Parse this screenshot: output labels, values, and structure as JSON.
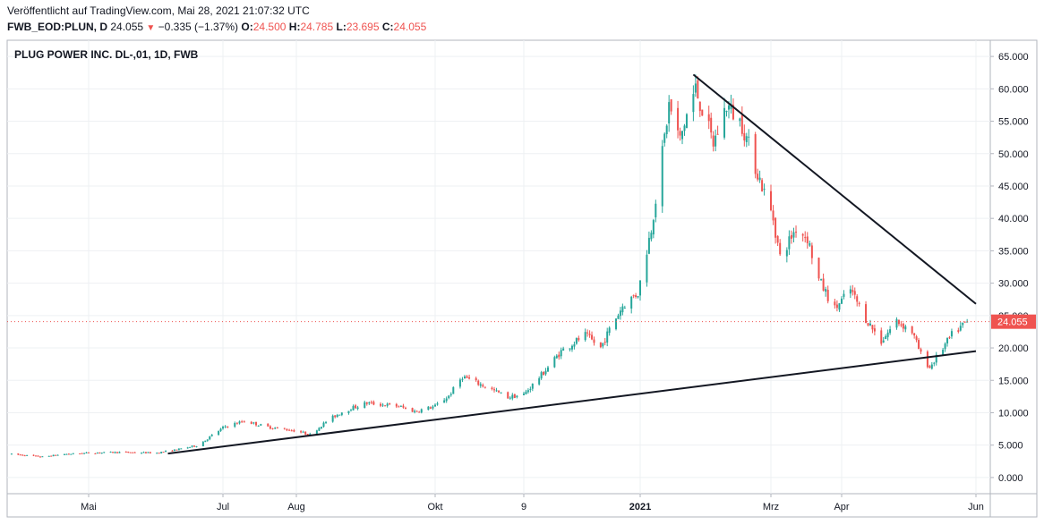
{
  "header": {
    "published": "Veröffentlicht auf TradingView.com, Mai 28, 2021 21:07:32 UTC",
    "symbol": "FWB_EOD:PLUN, D",
    "price": "24.055",
    "change": "−0.335 (−1.37%)",
    "open_label": "O:",
    "open": "24.500",
    "high_label": "H:",
    "high": "24.785",
    "low_label": "L:",
    "low": "23.695",
    "close_label": "C:",
    "close": "24.055"
  },
  "chart_data": {
    "type": "candlestick",
    "title": "PLUG POWER INC. DL-,01, 1D, FWB",
    "ylim": [
      -2.5,
      67.5
    ],
    "y_ticks": [
      "65.000",
      "60.000",
      "55.000",
      "50.000",
      "45.000",
      "40.000",
      "35.000",
      "30.000",
      "25.000",
      "20.000",
      "15.000",
      "10.000",
      "5.000",
      "0.000"
    ],
    "x_ticks": [
      {
        "label": "Mai",
        "date": "2020-05-01"
      },
      {
        "label": "Jul",
        "date": "2020-07-01"
      },
      {
        "label": "Aug",
        "date": "2020-08-01"
      },
      {
        "label": "Okt",
        "date": "2020-10-01"
      },
      {
        "label": "9",
        "date": "2020-11-09"
      },
      {
        "label": "2021",
        "date": "2021-01-01",
        "bold": true
      },
      {
        "label": "Mrz",
        "date": "2021-03-01"
      },
      {
        "label": "Apr",
        "date": "2021-04-01"
      },
      {
        "label": "Jun",
        "date": "2021-06-01"
      }
    ],
    "last_value": "24.055",
    "colors": {
      "up": "#26a69a",
      "down": "#ef5350",
      "grid": "#eef0f3",
      "trendline": "#131722"
    },
    "trendlines": [
      {
        "name": "support",
        "points": [
          {
            "x": "2020-06-06",
            "y": 3.7
          },
          {
            "x": "2021-06-01",
            "y": 19.5
          }
        ]
      },
      {
        "name": "resistance",
        "points": [
          {
            "x": "2021-01-25",
            "y": 62.2
          },
          {
            "x": "2021-06-01",
            "y": 26.8
          }
        ]
      }
    ],
    "close_path": [
      [
        "2020-03-27",
        3.6
      ],
      [
        "2020-04-10",
        3.2
      ],
      [
        "2020-04-20",
        3.6
      ],
      [
        "2020-05-01",
        3.8
      ],
      [
        "2020-05-15",
        3.9
      ],
      [
        "2020-06-01",
        3.8
      ],
      [
        "2020-06-10",
        4.3
      ],
      [
        "2020-06-20",
        5.0
      ],
      [
        "2020-06-26",
        6.5
      ],
      [
        "2020-07-02",
        7.9
      ],
      [
        "2020-07-10",
        8.7
      ],
      [
        "2020-07-20",
        7.8
      ],
      [
        "2020-08-01",
        7.2
      ],
      [
        "2020-08-07",
        6.6
      ],
      [
        "2020-08-15",
        8.9
      ],
      [
        "2020-08-22",
        10.3
      ],
      [
        "2020-09-01",
        11.5
      ],
      [
        "2020-09-15",
        11.0
      ],
      [
        "2020-09-22",
        10.2
      ],
      [
        "2020-10-01",
        11.0
      ],
      [
        "2020-10-07",
        12.6
      ],
      [
        "2020-10-13",
        15.6
      ],
      [
        "2020-10-22",
        14.2
      ],
      [
        "2020-11-02",
        12.4
      ],
      [
        "2020-11-09",
        12.8
      ],
      [
        "2020-11-18",
        16.2
      ],
      [
        "2020-11-26",
        19.5
      ],
      [
        "2020-12-07",
        22.0
      ],
      [
        "2020-12-14",
        20.0
      ],
      [
        "2020-12-18",
        22.8
      ],
      [
        "2020-12-24",
        26.5
      ],
      [
        "2020-12-31",
        28.5
      ],
      [
        "2021-01-06",
        38.5
      ],
      [
        "2021-01-11",
        50.0
      ],
      [
        "2021-01-14",
        57.5
      ],
      [
        "2021-01-19",
        52.0
      ],
      [
        "2021-01-22",
        56.0
      ],
      [
        "2021-01-26",
        60.0
      ],
      [
        "2021-02-03",
        51.5
      ],
      [
        "2021-02-09",
        57.5
      ],
      [
        "2021-02-16",
        54.5
      ],
      [
        "2021-02-23",
        47.0
      ],
      [
        "2021-03-02",
        40.0
      ],
      [
        "2021-03-05",
        34.0
      ],
      [
        "2021-03-12",
        38.5
      ],
      [
        "2021-03-17",
        37.0
      ],
      [
        "2021-03-22",
        30.5
      ],
      [
        "2021-03-29",
        26.0
      ],
      [
        "2021-04-05",
        29.0
      ],
      [
        "2021-04-12",
        24.5
      ],
      [
        "2021-04-19",
        21.0
      ],
      [
        "2021-04-26",
        24.2
      ],
      [
        "2021-05-03",
        22.5
      ],
      [
        "2021-05-07",
        19.0
      ],
      [
        "2021-05-11",
        17.0
      ],
      [
        "2021-05-14",
        18.5
      ],
      [
        "2021-05-21",
        22.0
      ],
      [
        "2021-05-28",
        24.055
      ]
    ]
  }
}
